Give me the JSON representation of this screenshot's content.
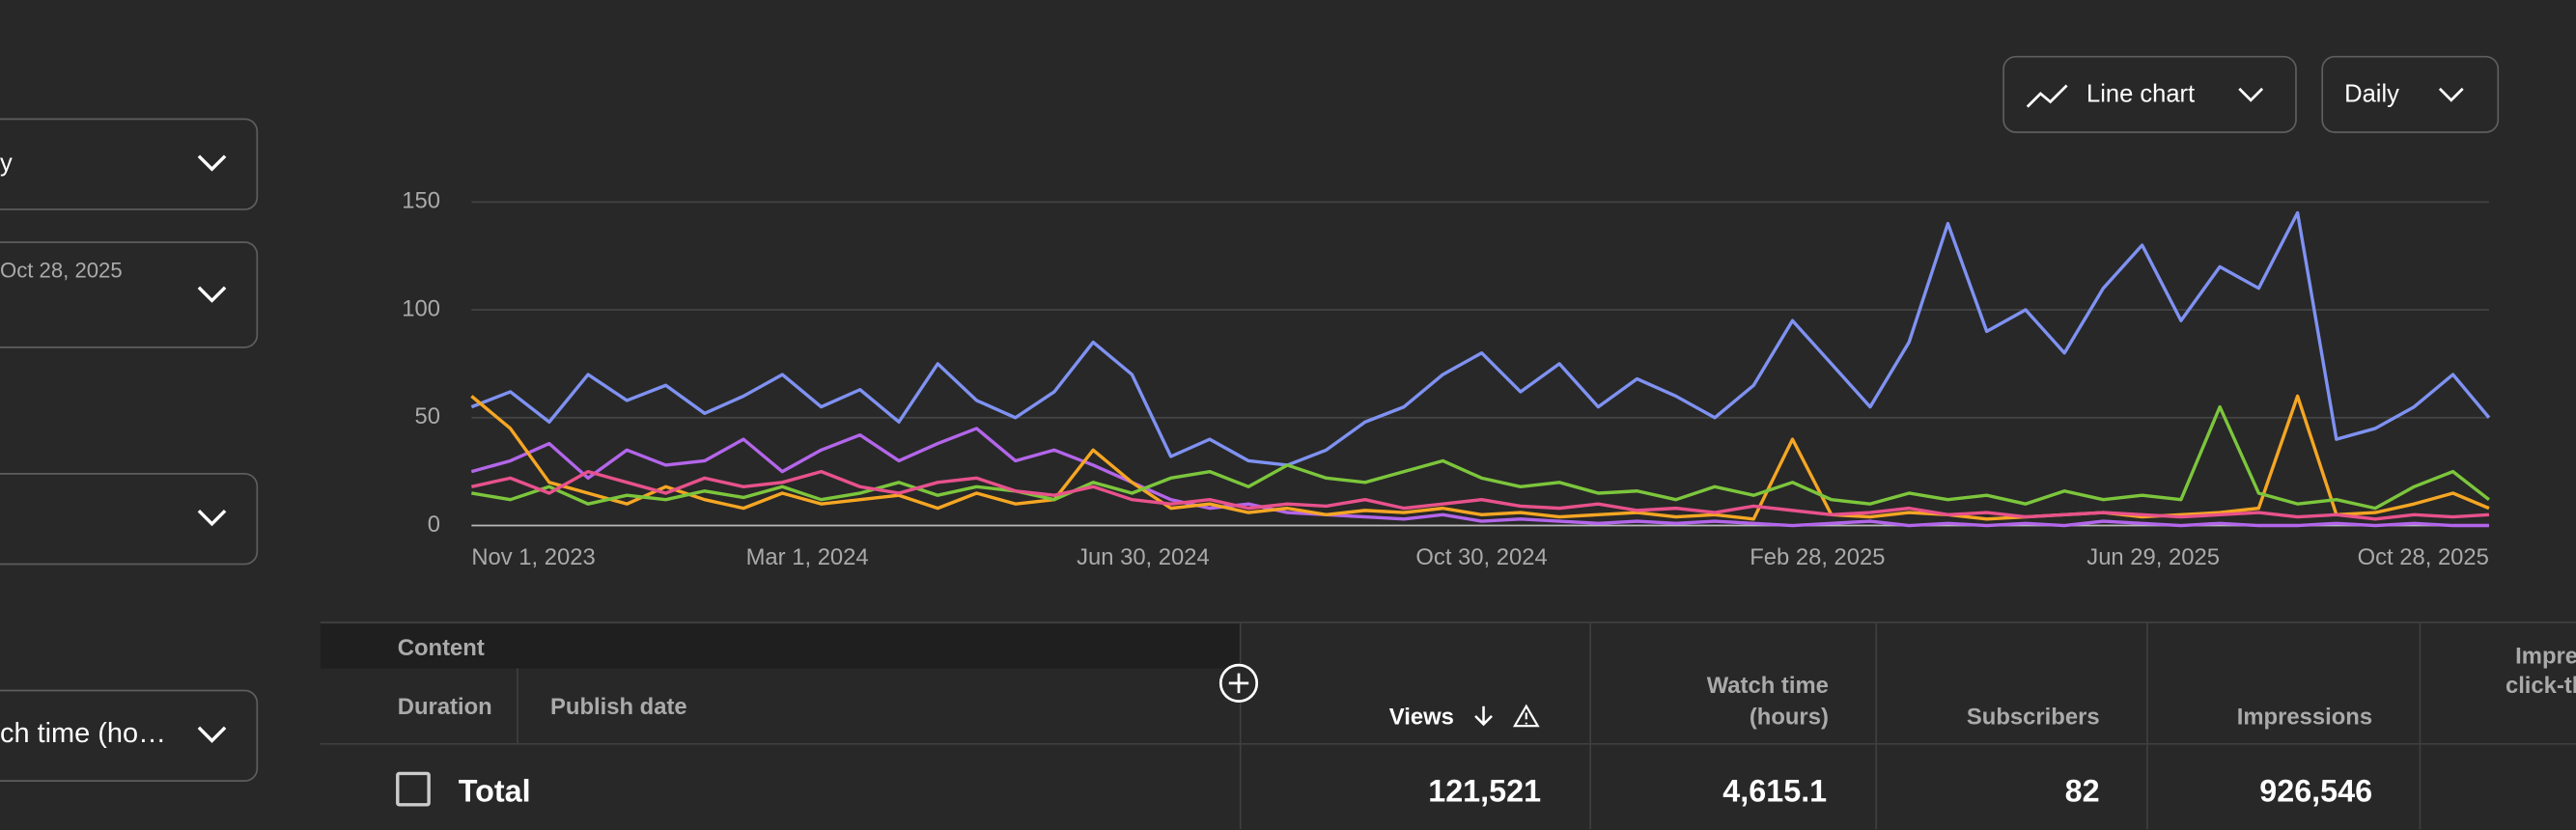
{
  "sidebar": {
    "dropdown_1": "y",
    "dropdown_2": "Oct 28, 2025",
    "dropdown_4": "ch time (ho…"
  },
  "toolbar": {
    "chart_type": "Line chart",
    "interval": "Daily"
  },
  "chart_data": {
    "type": "line",
    "x": [
      "Nov 1, 2023",
      "Nov 15, 2023",
      "Nov 29, 2023",
      "Dec 13, 2023",
      "Dec 27, 2023",
      "Jan 10, 2024",
      "Jan 24, 2024",
      "Feb 7, 2024",
      "Feb 21, 2024",
      "Mar 6, 2024",
      "Mar 20, 2024",
      "Apr 3, 2024",
      "Apr 17, 2024",
      "May 1, 2024",
      "May 15, 2024",
      "May 29, 2024",
      "Jun 12, 2024",
      "Jun 26, 2024",
      "Jul 10, 2024",
      "Jul 24, 2024",
      "Aug 7, 2024",
      "Aug 21, 2024",
      "Sep 4, 2024",
      "Sep 18, 2024",
      "Oct 2, 2024",
      "Oct 16, 2024",
      "Oct 30, 2024",
      "Nov 13, 2024",
      "Nov 27, 2024",
      "Dec 11, 2024",
      "Dec 25, 2024",
      "Jan 8, 2025",
      "Jan 22, 2025",
      "Feb 5, 2025",
      "Feb 19, 2025",
      "Mar 5, 2025",
      "Mar 19, 2025",
      "Apr 2, 2025",
      "Apr 16, 2025",
      "Apr 30, 2025",
      "May 14, 2025",
      "May 28, 2025",
      "Jun 11, 2025",
      "Jun 25, 2025",
      "Jul 9, 2025",
      "Jul 23, 2025",
      "Aug 6, 2025",
      "Aug 20, 2025",
      "Sep 3, 2025",
      "Sep 17, 2025",
      "Oct 1, 2025",
      "Oct 15, 2025",
      "Oct 28, 2025"
    ],
    "series": [
      {
        "color": "#7f92f2",
        "values": [
          55,
          62,
          48,
          70,
          58,
          65,
          52,
          60,
          70,
          55,
          63,
          48,
          75,
          58,
          50,
          62,
          85,
          70,
          32,
          40,
          30,
          28,
          35,
          48,
          55,
          70,
          80,
          62,
          75,
          55,
          68,
          60,
          50,
          65,
          95,
          75,
          55,
          85,
          140,
          90,
          100,
          80,
          110,
          130,
          95,
          120,
          110,
          145,
          40,
          45,
          55,
          70,
          50
        ]
      },
      {
        "color": "#b366ea",
        "values": [
          25,
          30,
          38,
          22,
          35,
          28,
          30,
          40,
          25,
          35,
          42,
          30,
          38,
          45,
          30,
          35,
          28,
          20,
          12,
          8,
          10,
          6,
          5,
          4,
          3,
          5,
          2,
          3,
          2,
          1,
          2,
          1,
          2,
          1,
          0,
          1,
          2,
          0,
          1,
          0,
          1,
          0,
          2,
          1,
          0,
          1,
          0,
          0,
          1,
          0,
          1,
          0,
          0
        ]
      },
      {
        "color": "#f5a623",
        "values": [
          60,
          45,
          20,
          15,
          10,
          18,
          12,
          8,
          15,
          10,
          12,
          14,
          8,
          15,
          10,
          12,
          35,
          20,
          8,
          10,
          6,
          8,
          5,
          7,
          6,
          8,
          5,
          6,
          4,
          5,
          6,
          4,
          5,
          3,
          40,
          5,
          4,
          6,
          5,
          3,
          4,
          5,
          6,
          4,
          5,
          6,
          8,
          60,
          5,
          6,
          10,
          15,
          8
        ]
      },
      {
        "color": "#7cc63c",
        "values": [
          15,
          12,
          18,
          10,
          14,
          12,
          16,
          13,
          18,
          12,
          15,
          20,
          14,
          18,
          16,
          12,
          20,
          15,
          22,
          25,
          18,
          28,
          22,
          20,
          25,
          30,
          22,
          18,
          20,
          15,
          16,
          12,
          18,
          14,
          20,
          12,
          10,
          15,
          12,
          14,
          10,
          16,
          12,
          14,
          12,
          55,
          15,
          10,
          12,
          8,
          18,
          25,
          12
        ]
      },
      {
        "color": "#e8528c",
        "values": [
          18,
          22,
          15,
          25,
          20,
          15,
          22,
          18,
          20,
          25,
          18,
          15,
          20,
          22,
          16,
          14,
          18,
          12,
          10,
          12,
          8,
          10,
          9,
          12,
          8,
          10,
          12,
          9,
          8,
          10,
          7,
          8,
          6,
          9,
          7,
          5,
          6,
          8,
          5,
          6,
          4,
          5,
          6,
          5,
          4,
          5,
          6,
          4,
          5,
          3,
          5,
          4,
          5
        ]
      }
    ],
    "xlim": [
      "Nov 1, 2023",
      "Oct 28, 2025"
    ],
    "xticks": [
      "Nov 1, 2023",
      "Mar 1, 2024",
      "Jun 30, 2024",
      "Oct 30, 2024",
      "Feb 28, 2025",
      "Jun 29, 2025",
      "Oct 28, 2025"
    ],
    "ylim": [
      0,
      150
    ],
    "yticks": [
      0,
      50,
      100,
      150
    ],
    "grid": true
  },
  "table": {
    "group_header": "Content",
    "sub_headers": [
      "Duration",
      "Publish date"
    ],
    "columns": [
      "Views",
      "Watch time",
      "(hours)",
      "Subscribers",
      "Impressions",
      "Impre",
      "click-th"
    ],
    "total": {
      "label": "Total",
      "values": [
        "121,521",
        "4,615.1",
        "82",
        "926,546"
      ]
    }
  }
}
